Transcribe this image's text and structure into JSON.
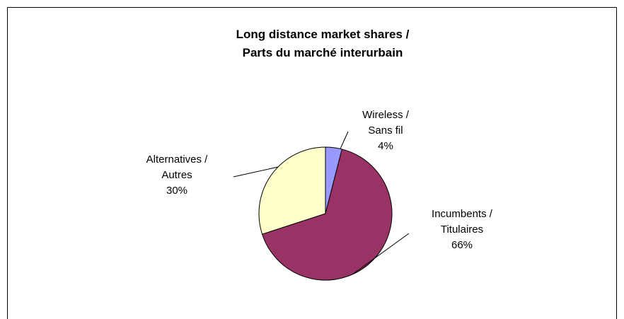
{
  "chart_data": {
    "type": "pie",
    "title": [
      "Long distance market shares /",
      "Parts du marché interurbain"
    ],
    "categories": [
      "Wireless / Sans fil",
      "Incumbents / Titulaires",
      "Alternatives / Autres"
    ],
    "values": [
      4,
      66,
      30
    ],
    "value_labels": [
      "4%",
      "66%",
      "30%"
    ],
    "colors": [
      "#9999ff",
      "#993366",
      "#ffffcc"
    ]
  }
}
